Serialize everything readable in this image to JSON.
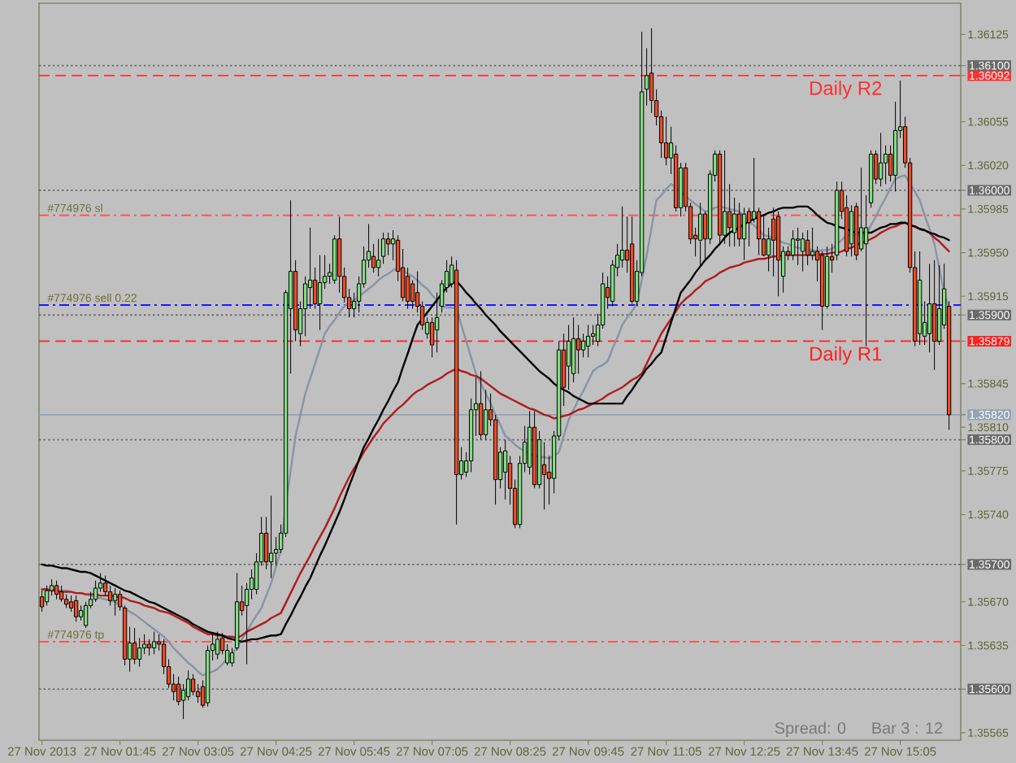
{
  "chart_data": {
    "type": "candlestick",
    "categories": [
      "27 Nov 2013",
      null,
      null,
      null,
      null,
      null,
      null,
      null,
      null,
      null,
      null,
      null,
      null,
      null,
      null,
      null,
      "27 Nov 01:45",
      null,
      null,
      null,
      null,
      null,
      null,
      null,
      null,
      null,
      null,
      null,
      null,
      null,
      null,
      null,
      "27 Nov 03:05",
      null,
      null,
      null,
      null,
      null,
      null,
      null,
      null,
      null,
      null,
      null,
      null,
      null,
      null,
      null,
      "27 Nov 04:25",
      null,
      null,
      null,
      null,
      null,
      null,
      null,
      null,
      null,
      null,
      null,
      null,
      null,
      null,
      null,
      "27 Nov 05:45",
      null,
      null,
      null,
      null,
      null,
      null,
      null,
      null,
      null,
      null,
      null,
      null,
      null,
      null,
      null,
      "27 Nov 07:05",
      null,
      null,
      null,
      null,
      null,
      null,
      null,
      null,
      null,
      null,
      null,
      null,
      null,
      null,
      null,
      "27 Nov 08:25",
      null,
      null,
      null,
      null,
      null,
      null,
      null,
      null,
      null,
      null,
      null,
      null,
      null,
      null,
      null,
      "27 Nov 09:45",
      null,
      null,
      null,
      null,
      null,
      null,
      null,
      null,
      null,
      null,
      null,
      null,
      null,
      null,
      null,
      "27 Nov 11:05",
      null,
      null,
      null,
      null,
      null,
      null,
      null,
      null,
      null,
      null,
      null,
      null,
      null,
      null,
      null,
      "27 Nov 12:25",
      null,
      null,
      null,
      null,
      null,
      null,
      null,
      null,
      null,
      null,
      null,
      null,
      null,
      null,
      null,
      "27 Nov 13:45",
      null,
      null,
      null,
      null,
      null,
      null,
      null,
      null,
      null,
      null,
      null,
      null,
      null,
      null,
      null,
      "27 Nov 15:05",
      null,
      null,
      null,
      null,
      null,
      null,
      null,
      null,
      null,
      null
    ],
    "ohlc": [
      [
        1.35674,
        1.35679,
        1.35662,
        1.35666
      ],
      [
        1.3567,
        1.35683,
        1.35667,
        1.35679
      ],
      [
        1.35679,
        1.35688,
        1.35675,
        1.35683
      ],
      [
        1.35683,
        1.35687,
        1.35672,
        1.35676
      ],
      [
        1.35678,
        1.35683,
        1.3567,
        1.35672
      ],
      [
        1.35672,
        1.35676,
        1.35665,
        1.35668
      ],
      [
        1.3567,
        1.35675,
        1.35662,
        1.35665
      ],
      [
        1.35671,
        1.35675,
        1.35654,
        1.35658
      ],
      [
        1.35658,
        1.35667,
        1.35655,
        1.35663
      ],
      [
        1.35651,
        1.3567,
        1.35649,
        1.35667
      ],
      [
        1.35667,
        1.35678,
        1.35665,
        1.35672
      ],
      [
        1.35672,
        1.35687,
        1.3567,
        1.35681
      ],
      [
        1.35681,
        1.35693,
        1.35678,
        1.35685
      ],
      [
        1.35685,
        1.35691,
        1.35675,
        1.35678
      ],
      [
        1.35678,
        1.35683,
        1.35667,
        1.35671
      ],
      [
        1.35671,
        1.35681,
        1.35659,
        1.35676
      ],
      [
        1.35676,
        1.35679,
        1.35663,
        1.35666
      ],
      [
        1.35665,
        1.35667,
        1.35619,
        1.35624
      ],
      [
        1.35624,
        1.3565,
        1.35614,
        1.35637
      ],
      [
        1.35637,
        1.35649,
        1.3562,
        1.35624
      ],
      [
        1.35624,
        1.35641,
        1.35618,
        1.35633
      ],
      [
        1.35633,
        1.35644,
        1.35628,
        1.35636
      ],
      [
        1.35636,
        1.3564,
        1.35627,
        1.35633
      ],
      [
        1.35633,
        1.35646,
        1.35628,
        1.35638
      ],
      [
        1.35638,
        1.35644,
        1.35631,
        1.35636
      ],
      [
        1.35636,
        1.3564,
        1.35612,
        1.35618
      ],
      [
        1.35618,
        1.35624,
        1.35601,
        1.35604
      ],
      [
        1.35604,
        1.35612,
        1.35591,
        1.35598
      ],
      [
        1.35604,
        1.3561,
        1.35587,
        1.3559
      ],
      [
        1.35591,
        1.35604,
        1.35576,
        1.35599
      ],
      [
        1.35594,
        1.35615,
        1.35591,
        1.35608
      ],
      [
        1.35608,
        1.35612,
        1.35595,
        1.35598
      ],
      [
        1.35598,
        1.35604,
        1.35589,
        1.35594
      ],
      [
        1.35602,
        1.35607,
        1.35585,
        1.35587
      ],
      [
        1.35589,
        1.35635,
        1.35586,
        1.35631
      ],
      [
        1.35631,
        1.35644,
        1.35623,
        1.35636
      ],
      [
        1.35628,
        1.35646,
        1.35624,
        1.3564
      ],
      [
        1.35641,
        1.35645,
        1.35628,
        1.35631
      ],
      [
        1.35621,
        1.35636,
        1.35619,
        1.35631
      ],
      [
        1.35621,
        1.35633,
        1.35618,
        1.35629
      ],
      [
        1.35633,
        1.35693,
        1.35631,
        1.3567
      ],
      [
        1.3567,
        1.35683,
        1.35659,
        1.35663
      ],
      [
        1.35667,
        1.35685,
        1.3562,
        1.3568
      ],
      [
        1.3568,
        1.35696,
        1.35672,
        1.35689
      ],
      [
        1.3568,
        1.35709,
        1.35676,
        1.35702
      ],
      [
        1.35702,
        1.35738,
        1.35699,
        1.35725
      ],
      [
        1.35725,
        1.35738,
        1.35696,
        1.35702
      ],
      [
        1.35702,
        1.35755,
        1.35689,
        1.35709
      ],
      [
        1.35709,
        1.35722,
        1.35699,
        1.35712
      ],
      [
        1.35712,
        1.35732,
        1.35709,
        1.35725
      ],
      [
        1.35725,
        1.3592,
        1.35722,
        1.35918
      ],
      [
        1.35905,
        1.35992,
        1.35853,
        1.35935
      ],
      [
        1.35935,
        1.35944,
        1.35879,
        1.35888
      ],
      [
        1.35885,
        1.35911,
        1.35875,
        1.35905
      ],
      [
        1.35905,
        1.35931,
        1.35883,
        1.35925
      ],
      [
        1.35922,
        1.3597,
        1.35905,
        1.35928
      ],
      [
        1.35928,
        1.35938,
        1.35905,
        1.35909
      ],
      [
        1.35909,
        1.35948,
        1.35888,
        1.35926
      ],
      [
        1.35926,
        1.35948,
        1.35921,
        1.35931
      ],
      [
        1.35931,
        1.35941,
        1.35925,
        1.35934
      ],
      [
        1.35928,
        1.35964,
        1.35925,
        1.35961
      ],
      [
        1.35961,
        1.35979,
        1.35918,
        1.35931
      ],
      [
        1.35931,
        1.35938,
        1.3591,
        1.35914
      ],
      [
        1.35914,
        1.35921,
        1.35898,
        1.35905
      ],
      [
        1.35905,
        1.35918,
        1.35898,
        1.35911
      ],
      [
        1.35911,
        1.35931,
        1.35902,
        1.35925
      ],
      [
        1.35925,
        1.35955,
        1.35922,
        1.35944
      ],
      [
        1.35944,
        1.35973,
        1.35938,
        1.35951
      ],
      [
        1.35947,
        1.35957,
        1.35934,
        1.35938
      ],
      [
        1.35938,
        1.35961,
        1.35931,
        1.35944
      ],
      [
        1.35947,
        1.35966,
        1.35941,
        1.35961
      ],
      [
        1.35961,
        1.35966,
        1.35948,
        1.35957
      ],
      [
        1.35957,
        1.35968,
        1.35944,
        1.35961
      ],
      [
        1.3596,
        1.35964,
        1.35927,
        1.35935
      ],
      [
        1.35938,
        1.35953,
        1.35911,
        1.35914
      ],
      [
        1.35931,
        1.35938,
        1.35905,
        1.35911
      ],
      [
        1.35925,
        1.35928,
        1.35905,
        1.35911
      ],
      [
        1.35918,
        1.35935,
        1.35902,
        1.35907
      ],
      [
        1.35907,
        1.35911,
        1.35888,
        1.35892
      ],
      [
        1.35885,
        1.35898,
        1.35881,
        1.35894
      ],
      [
        1.35894,
        1.35898,
        1.35866,
        1.35876
      ],
      [
        1.35888,
        1.35918,
        1.3587,
        1.35898
      ],
      [
        1.35907,
        1.35928,
        1.35902,
        1.35925
      ],
      [
        1.35922,
        1.35944,
        1.35918,
        1.35935
      ],
      [
        1.35925,
        1.35947,
        1.35922,
        1.3594
      ],
      [
        1.35936,
        1.35944,
        1.35732,
        1.35772
      ],
      [
        1.35772,
        1.35794,
        1.35768,
        1.35783
      ],
      [
        1.35774,
        1.3579,
        1.3577,
        1.35783
      ],
      [
        1.35783,
        1.35833,
        1.35774,
        1.35824
      ],
      [
        1.35824,
        1.3585,
        1.35803,
        1.35829
      ],
      [
        1.35829,
        1.35855,
        1.358,
        1.35804
      ],
      [
        1.35804,
        1.3584,
        1.358,
        1.35824
      ],
      [
        1.35824,
        1.35837,
        1.35811,
        1.35816
      ],
      [
        1.35816,
        1.3582,
        1.35748,
        1.35768
      ],
      [
        1.35768,
        1.35794,
        1.35761,
        1.3579
      ],
      [
        1.35774,
        1.358,
        1.35752,
        1.35791
      ],
      [
        1.35781,
        1.35787,
        1.35748,
        1.35761
      ],
      [
        1.35761,
        1.35768,
        1.35729,
        1.35732
      ],
      [
        1.35732,
        1.35787,
        1.35729,
        1.35781
      ],
      [
        1.35781,
        1.35811,
        1.35774,
        1.35798
      ],
      [
        1.35778,
        1.35823,
        1.35772,
        1.3581
      ],
      [
        1.3581,
        1.35823,
        1.35761,
        1.35764
      ],
      [
        1.35764,
        1.35807,
        1.35761,
        1.358
      ],
      [
        1.3578,
        1.35798,
        1.35744,
        1.35772
      ],
      [
        1.35774,
        1.35787,
        1.35748,
        1.35769
      ],
      [
        1.35769,
        1.35807,
        1.35757,
        1.35803
      ],
      [
        1.35803,
        1.35879,
        1.358,
        1.35872
      ],
      [
        1.35872,
        1.35885,
        1.35827,
        1.35842
      ],
      [
        1.35859,
        1.35892,
        1.3584,
        1.35879
      ],
      [
        1.35853,
        1.35898,
        1.35846,
        1.35881
      ],
      [
        1.35881,
        1.35892,
        1.35853,
        1.35872
      ],
      [
        1.35872,
        1.35885,
        1.35866,
        1.35879
      ],
      [
        1.35875,
        1.35892,
        1.35866,
        1.35883
      ],
      [
        1.35883,
        1.35892,
        1.35876,
        1.35885
      ],
      [
        1.35879,
        1.35901,
        1.35875,
        1.35892
      ],
      [
        1.35892,
        1.35934,
        1.35889,
        1.35925
      ],
      [
        1.35922,
        1.35931,
        1.35905,
        1.35914
      ],
      [
        1.35911,
        1.35944,
        1.35907,
        1.3594
      ],
      [
        1.35938,
        1.35957,
        1.35931,
        1.35948
      ],
      [
        1.35944,
        1.35987,
        1.35938,
        1.35952
      ],
      [
        1.35952,
        1.35979,
        1.35934,
        1.35944
      ],
      [
        1.35957,
        1.35979,
        1.35909,
        1.35911
      ],
      [
        1.35911,
        1.35944,
        1.35907,
        1.35935
      ],
      [
        1.35934,
        1.36127,
        1.35931,
        1.36079
      ],
      [
        1.36081,
        1.36114,
        1.36068,
        1.36092
      ],
      [
        1.36094,
        1.3613,
        1.36062,
        1.36072
      ],
      [
        1.36072,
        1.36081,
        1.36052,
        1.36059
      ],
      [
        1.36059,
        1.36064,
        1.36026,
        1.36038
      ],
      [
        1.36038,
        1.36059,
        1.3602,
        1.36026
      ],
      [
        1.36026,
        1.36051,
        1.36013,
        1.36038
      ],
      [
        1.36029,
        1.36036,
        1.35983,
        1.35986
      ],
      [
        1.35986,
        1.36022,
        1.35979,
        1.36018
      ],
      [
        1.36018,
        1.36022,
        1.35983,
        1.35987
      ],
      [
        1.35987,
        1.3599,
        1.35957,
        1.35961
      ],
      [
        1.35964,
        1.3597,
        1.35947,
        1.35961
      ],
      [
        1.3596,
        1.3599,
        1.3594,
        1.35981
      ],
      [
        1.35981,
        1.35983,
        1.35944,
        1.35961
      ],
      [
        1.35961,
        1.36016,
        1.35957,
        1.36013
      ],
      [
        1.36012,
        1.36032,
        1.36007,
        1.36029
      ],
      [
        1.36029,
        1.36032,
        1.35957,
        1.35964
      ],
      [
        1.35964,
        1.36032,
        1.35957,
        1.35983
      ],
      [
        1.35983,
        1.36005,
        1.35955,
        1.3597
      ],
      [
        1.35966,
        1.35994,
        1.35955,
        1.35981
      ],
      [
        1.35981,
        1.3599,
        1.35955,
        1.35961
      ],
      [
        1.35961,
        1.35986,
        1.35944,
        1.35981
      ],
      [
        1.35983,
        1.35986,
        1.35955,
        1.35974
      ],
      [
        1.35977,
        1.36026,
        1.35974,
        1.35983
      ],
      [
        1.35983,
        1.35986,
        1.35948,
        1.35961
      ],
      [
        1.35961,
        1.35981,
        1.35947,
        1.35948
      ],
      [
        1.35948,
        1.3597,
        1.35935,
        1.35961
      ],
      [
        1.35977,
        1.35986,
        1.35931,
        1.3596
      ],
      [
        1.35979,
        1.35983,
        1.35915,
        1.35944
      ],
      [
        1.35931,
        1.35955,
        1.35918,
        1.35951
      ],
      [
        1.35951,
        1.35955,
        1.35944,
        1.35948
      ],
      [
        1.35948,
        1.35968,
        1.35944,
        1.35961
      ],
      [
        1.3596,
        1.3597,
        1.3594,
        1.35961
      ],
      [
        1.35951,
        1.35966,
        1.35935,
        1.35961
      ],
      [
        1.3596,
        1.35968,
        1.3594,
        1.35948
      ],
      [
        1.35948,
        1.3597,
        1.35944,
        1.35951
      ],
      [
        1.35951,
        1.35955,
        1.35927,
        1.35944
      ],
      [
        1.35948,
        1.35951,
        1.35888,
        1.35907
      ],
      [
        1.35907,
        1.35955,
        1.35905,
        1.35947
      ],
      [
        1.35947,
        1.35957,
        1.35934,
        1.35944
      ],
      [
        1.35948,
        1.36007,
        1.35944,
        1.36
      ],
      [
        1.36,
        1.36007,
        1.35977,
        1.35983
      ],
      [
        1.35986,
        1.35996,
        1.35947,
        1.35951
      ],
      [
        1.35957,
        1.35988,
        1.35947,
        1.35983
      ],
      [
        1.35987,
        1.3599,
        1.35944,
        1.35948
      ],
      [
        1.35953,
        1.36018,
        1.35951,
        1.3597
      ],
      [
        1.35957,
        1.35996,
        1.35875,
        1.3597
      ],
      [
        1.3599,
        1.36032,
        1.35986,
        1.36029
      ],
      [
        1.36029,
        1.36032,
        1.36005,
        1.36009
      ],
      [
        1.36009,
        1.36046,
        1.36003,
        1.36022
      ],
      [
        1.36022,
        1.36036,
        1.36005,
        1.36029
      ],
      [
        1.36029,
        1.36036,
        1.36007,
        1.36012
      ],
      [
        1.36012,
        1.36071,
        1.35999,
        1.36048
      ],
      [
        1.36048,
        1.36088,
        1.36042,
        1.36051
      ],
      [
        1.36051,
        1.36059,
        1.36018,
        1.36022
      ],
      [
        1.36022,
        1.36026,
        1.35934,
        1.35938
      ],
      [
        1.35938,
        1.35951,
        1.35875,
        1.35879
      ],
      [
        1.35885,
        1.35951,
        1.35876,
        1.35928
      ],
      [
        1.35883,
        1.35911,
        1.35876,
        1.35894
      ],
      [
        1.35885,
        1.35941,
        1.3587,
        1.35909
      ],
      [
        1.35909,
        1.35944,
        1.35856,
        1.35879
      ],
      [
        1.35879,
        1.3594,
        1.35876,
        1.35905
      ],
      [
        1.35892,
        1.35941,
        1.35889,
        1.35921
      ],
      [
        1.35907,
        1.35911,
        1.35808,
        1.3582
      ]
    ],
    "colors": [
      "#f04a24",
      "#7fdf7f",
      "#7fdf7f",
      "#f04a24",
      "#f04a24",
      "#f04a24",
      "#f04a24",
      "#f04a24",
      "#7fdf7f",
      "#7fdf7f",
      "#7fdf7f",
      "#7fdf7f",
      "#7fdf7f",
      "#f04a24",
      "#f04a24",
      "#7fdf7f",
      "#f04a24",
      "#f04a24",
      "#7fdf7f",
      "#f04a24",
      "#7fdf7f",
      "#7fdf7f",
      "#f04a24",
      "#7fdf7f",
      "#f04a24",
      "#f04a24",
      "#f04a24",
      "#f04a24",
      "#f04a24",
      "#7fdf7f",
      "#7fdf7f",
      "#f04a24",
      "#f04a24",
      "#f04a24",
      "#7fdf7f",
      "#7fdf7f",
      "#7fdf7f",
      "#f04a24",
      "#7fdf7f",
      "#7fdf7f",
      "#7fdf7f",
      "#f04a24",
      "#7fdf7f",
      "#7fdf7f",
      "#7fdf7f",
      "#7fdf7f",
      "#f04a24",
      "#7fdf7f",
      "#7fdf7f",
      "#7fdf7f",
      "#7fdf7f",
      "#7fdf7f",
      "#f04a24",
      "#7fdf7f",
      "#7fdf7f",
      "#7fdf7f",
      "#f04a24",
      "#7fdf7f",
      "#7fdf7f",
      "#7fdf7f",
      "#7fdf7f",
      "#f04a24",
      "#f04a24",
      "#f04a24",
      "#7fdf7f",
      "#7fdf7f",
      "#7fdf7f",
      "#7fdf7f",
      "#f04a24",
      "#7fdf7f",
      "#7fdf7f",
      "#f04a24",
      "#7fdf7f",
      "#f04a24",
      "#f04a24",
      "#f04a24",
      "#f04a24",
      "#f04a24",
      "#f04a24",
      "#7fdf7f",
      "#f04a24",
      "#7fdf7f",
      "#7fdf7f",
      "#7fdf7f",
      "#7fdf7f",
      "#f04a24",
      "#7fdf7f",
      "#7fdf7f",
      "#7fdf7f",
      "#7fdf7f",
      "#f04a24",
      "#7fdf7f",
      "#f04a24",
      "#f04a24",
      "#7fdf7f",
      "#7fdf7f",
      "#f04a24",
      "#f04a24",
      "#7fdf7f",
      "#7fdf7f",
      "#7fdf7f",
      "#f04a24",
      "#7fdf7f",
      "#f04a24",
      "#f04a24",
      "#7fdf7f",
      "#7fdf7f",
      "#f04a24",
      "#7fdf7f",
      "#7fdf7f",
      "#f04a24",
      "#7fdf7f",
      "#7fdf7f",
      "#7fdf7f",
      "#7fdf7f",
      "#7fdf7f",
      "#f04a24",
      "#7fdf7f",
      "#7fdf7f",
      "#7fdf7f",
      "#f04a24",
      "#f04a24",
      "#7fdf7f",
      "#7fdf7f",
      "#7fdf7f",
      "#f04a24",
      "#f04a24",
      "#f04a24",
      "#f04a24",
      "#7fdf7f",
      "#f04a24",
      "#7fdf7f",
      "#f04a24",
      "#f04a24",
      "#f04a24",
      "#7fdf7f",
      "#f04a24",
      "#7fdf7f",
      "#7fdf7f",
      "#f04a24",
      "#7fdf7f",
      "#f04a24",
      "#7fdf7f",
      "#f04a24",
      "#7fdf7f",
      "#f04a24",
      "#7fdf7f",
      "#f04a24",
      "#f04a24",
      "#7fdf7f",
      "#f04a24",
      "#f04a24",
      "#7fdf7f",
      "#f04a24",
      "#7fdf7f",
      "#7fdf7f",
      "#7fdf7f",
      "#f04a24",
      "#7fdf7f",
      "#f04a24",
      "#f04a24",
      "#7fdf7f",
      "#f04a24",
      "#7fdf7f",
      "#f04a24",
      "#f04a24",
      "#7fdf7f",
      "#f04a24",
      "#7fdf7f",
      "#7fdf7f",
      "#7fdf7f",
      "#f04a24",
      "#7fdf7f",
      "#7fdf7f",
      "#f04a24",
      "#7fdf7f",
      "#7fdf7f",
      "#f04a24",
      "#f04a24",
      "#f04a24",
      "#7fdf7f",
      "#7fdf7f",
      "#7fdf7f",
      "#f04a24",
      "#7fdf7f",
      "#7fdf7f",
      "#f04a24"
    ],
    "series": [
      {
        "type": "line",
        "color": "#8794a6",
        "values": [
          1.3568,
          1.3568,
          1.3568,
          1.35679,
          1.35679,
          1.35679,
          1.35678,
          1.35677,
          1.35677,
          1.35676,
          1.35675,
          1.35674,
          1.35673,
          1.35672,
          1.35671,
          1.3567,
          1.35667,
          1.35665,
          1.35662,
          1.3566,
          1.35657,
          1.35654,
          1.35651,
          1.35648,
          1.35645,
          1.35642,
          1.35638,
          1.35633,
          1.35629,
          1.35625,
          1.35621,
          1.35618,
          1.35614,
          1.35611,
          1.35613,
          1.35614,
          1.35616,
          1.3562,
          1.35625,
          1.35629,
          1.35633,
          1.3564,
          1.35646,
          1.35653,
          1.35659,
          1.35665,
          1.35675,
          1.35685,
          1.35698,
          1.35712,
          1.35748,
          1.35775,
          1.35803,
          1.3582,
          1.35837,
          1.35849,
          1.35861,
          1.35873,
          1.35885,
          1.35891,
          1.35896,
          1.35902,
          1.35907,
          1.3591,
          1.35912,
          1.35915,
          1.35918,
          1.35921,
          1.35924,
          1.35928,
          1.35931,
          1.35933,
          1.35936,
          1.35938,
          1.35936,
          1.35933,
          1.35931,
          1.35928,
          1.35924,
          1.35921,
          1.35916,
          1.35912,
          1.35907,
          1.35906,
          1.35906,
          1.35905,
          1.35892,
          1.35879,
          1.35866,
          1.35853,
          1.35845,
          1.35837,
          1.35829,
          1.3582,
          1.35812,
          1.35803,
          1.358,
          1.35796,
          1.35793,
          1.35791,
          1.35789,
          1.35787,
          1.35786,
          1.35786,
          1.35785,
          1.35787,
          1.3579,
          1.35803,
          1.35816,
          1.35824,
          1.35832,
          1.35839,
          1.35847,
          1.35855,
          1.35858,
          1.3586,
          1.35863,
          1.35873,
          1.35882,
          1.35892,
          1.35898,
          1.35903,
          1.35909,
          1.35928,
          1.35948,
          1.3597,
          1.35992,
          1.35996,
          1.36001,
          1.36005,
          1.36002,
          1.35999,
          1.35995,
          1.35992,
          1.35989,
          1.35986,
          1.35983,
          1.35984,
          1.35986,
          1.35987,
          1.35986,
          1.35985,
          1.35984,
          1.35983,
          1.35979,
          1.35975,
          1.35972,
          1.35968,
          1.35964,
          1.35963,
          1.35961,
          1.3596,
          1.35958,
          1.35957,
          1.35955,
          1.35954,
          1.35953,
          1.35953,
          1.35952,
          1.35951,
          1.35952,
          1.35952,
          1.35953,
          1.35957,
          1.3596,
          1.35964,
          1.35964,
          1.35964,
          1.35964,
          1.35964,
          1.35972,
          1.35979,
          1.35987,
          1.35994,
          1.36002,
          1.36009,
          1.36011,
          1.36012,
          1.36005,
          1.35999,
          1.35992,
          1.3598,
          1.35969,
          1.35957,
          1.35938,
          1.35918,
          1.35905
        ]
      },
      {
        "type": "line",
        "color": "#b01c1c",
        "values": [
          1.3568,
          1.3568,
          1.35679,
          1.35679,
          1.35678,
          1.35678,
          1.35678,
          1.35677,
          1.35677,
          1.35676,
          1.35676,
          1.35676,
          1.35675,
          1.35675,
          1.35675,
          1.35674,
          1.35674,
          1.35673,
          1.35671,
          1.3567,
          1.35669,
          1.35667,
          1.35666,
          1.35665,
          1.35663,
          1.35662,
          1.35661,
          1.35659,
          1.35657,
          1.35655,
          1.35653,
          1.3565,
          1.35648,
          1.35646,
          1.35644,
          1.35644,
          1.35643,
          1.35643,
          1.35642,
          1.35642,
          1.35641,
          1.35643,
          1.35646,
          1.35648,
          1.3565,
          1.35652,
          1.35654,
          1.35657,
          1.35659,
          1.35661,
          1.35669,
          1.35677,
          1.35685,
          1.35693,
          1.357,
          1.35707,
          1.35715,
          1.35722,
          1.35729,
          1.35737,
          1.35745,
          1.35754,
          1.35762,
          1.3577,
          1.35777,
          1.35783,
          1.3579,
          1.35796,
          1.35802,
          1.35807,
          1.35813,
          1.35817,
          1.35821,
          1.35825,
          1.35828,
          1.35832,
          1.35836,
          1.35839,
          1.35841,
          1.35844,
          1.35846,
          1.35848,
          1.3585,
          1.35853,
          1.35855,
          1.35857,
          1.35855,
          1.35854,
          1.35852,
          1.35851,
          1.35849,
          1.35846,
          1.35843,
          1.3584,
          1.35837,
          1.35835,
          1.35833,
          1.35831,
          1.35829,
          1.35827,
          1.35825,
          1.35824,
          1.35822,
          1.3582,
          1.35819,
          1.35817,
          1.35818,
          1.35819,
          1.3582,
          1.35822,
          1.35824,
          1.35825,
          1.35827,
          1.35829,
          1.35831,
          1.35833,
          1.35836,
          1.35838,
          1.3584,
          1.35842,
          1.35845,
          1.35848,
          1.3585,
          1.35853,
          1.35861,
          1.35869,
          1.35877,
          1.35885,
          1.35891,
          1.35897,
          1.35903,
          1.35909,
          1.35913,
          1.35916,
          1.3592,
          1.35923,
          1.35927,
          1.35929,
          1.35931,
          1.35934,
          1.35936,
          1.35938,
          1.35939,
          1.3594,
          1.35942,
          1.35943,
          1.35944,
          1.35945,
          1.35945,
          1.35946,
          1.35947,
          1.35947,
          1.35948,
          1.35948,
          1.35948,
          1.35948,
          1.35948,
          1.35948,
          1.35948,
          1.35948,
          1.35949,
          1.35949,
          1.3595,
          1.3595,
          1.35951,
          1.35953,
          1.35954,
          1.35956,
          1.35958,
          1.35959,
          1.35961,
          1.35963,
          1.35966,
          1.35968,
          1.3597,
          1.35971,
          1.35973,
          1.35974,
          1.35972,
          1.35971,
          1.35969,
          1.35968,
          1.35966,
          1.35962,
          1.35959,
          1.35955,
          1.35951
        ]
      },
      {
        "type": "line",
        "color": "#000000",
        "values": [
          1.357,
          1.35699,
          1.35699,
          1.35698,
          1.35697,
          1.35697,
          1.35696,
          1.35695,
          1.35694,
          1.35694,
          1.35693,
          1.35691,
          1.35689,
          1.35687,
          1.35685,
          1.35683,
          1.35681,
          1.35679,
          1.35678,
          1.35676,
          1.35674,
          1.35672,
          1.3567,
          1.35669,
          1.35667,
          1.35665,
          1.35663,
          1.35661,
          1.35659,
          1.35657,
          1.35655,
          1.35652,
          1.3565,
          1.35648,
          1.35646,
          1.35645,
          1.35644,
          1.35643,
          1.35641,
          1.3564,
          1.35639,
          1.35638,
          1.35639,
          1.3564,
          1.3564,
          1.35641,
          1.35642,
          1.35643,
          1.35643,
          1.35644,
          1.35652,
          1.35659,
          1.35667,
          1.35674,
          1.35682,
          1.35689,
          1.35698,
          1.35707,
          1.35715,
          1.35724,
          1.35733,
          1.35742,
          1.35752,
          1.35763,
          1.35773,
          1.35784,
          1.35794,
          1.35801,
          1.35809,
          1.35816,
          1.35824,
          1.35831,
          1.35839,
          1.35846,
          1.35858,
          1.35869,
          1.35881,
          1.35892,
          1.35897,
          1.35902,
          1.35907,
          1.35912,
          1.35917,
          1.35922,
          1.35925,
          1.35927,
          1.35923,
          1.35918,
          1.35914,
          1.35909,
          1.35905,
          1.359,
          1.35896,
          1.35892,
          1.35887,
          1.35883,
          1.35879,
          1.35875,
          1.35871,
          1.35867,
          1.35863,
          1.35859,
          1.35855,
          1.35852,
          1.35849,
          1.35845,
          1.35842,
          1.3584,
          1.35838,
          1.35835,
          1.35833,
          1.35831,
          1.35829,
          1.35829,
          1.35829,
          1.35829,
          1.35829,
          1.35829,
          1.35829,
          1.35829,
          1.35835,
          1.3584,
          1.35846,
          1.35851,
          1.35857,
          1.35861,
          1.35866,
          1.3587,
          1.35882,
          1.35894,
          1.35906,
          1.35918,
          1.35923,
          1.35928,
          1.35934,
          1.35939,
          1.35944,
          1.35948,
          1.35953,
          1.35957,
          1.35962,
          1.35966,
          1.35968,
          1.3597,
          1.35973,
          1.35975,
          1.35977,
          1.35979,
          1.3598,
          1.35982,
          1.35983,
          1.35985,
          1.35986,
          1.35986,
          1.35986,
          1.35987,
          1.35987,
          1.35987,
          1.35984,
          1.3598,
          1.35977,
          1.35974,
          1.35973,
          1.35971,
          1.3597,
          1.35969,
          1.35967,
          1.35966,
          1.35966,
          1.35966,
          1.35966,
          1.35968,
          1.3597,
          1.35971,
          1.35973,
          1.35973,
          1.35974,
          1.35974,
          1.35972,
          1.35971,
          1.35969,
          1.35968,
          1.35966,
          1.35965,
          1.35963,
          1.35962,
          1.3596
        ]
      }
    ],
    "ylim": [
      1.35559,
      1.3615
    ],
    "yticks": [
      1.35565,
      {
        "value": 1.356,
        "label": "1.35600"
      },
      1.35635,
      {
        "value": 1.3567,
        "label": "1.35670"
      },
      {
        "value": 1.357,
        "label": "1.35700"
      },
      {
        "value": 1.3574,
        "label": "1.35740"
      },
      1.35775,
      {
        "value": 1.358,
        "label": "1.35800"
      },
      {
        "value": 1.3581,
        "label": "1.35810"
      },
      {
        "value": 1.3582,
        "label": "1.35820"
      },
      1.35845,
      1.35879,
      {
        "value": 1.359,
        "label": "1.35900"
      },
      1.35915,
      {
        "value": 1.3595,
        "label": "1.35950"
      },
      1.35985,
      {
        "value": 1.36,
        "label": "1.36000"
      },
      {
        "value": 1.3602,
        "label": "1.36020"
      },
      1.36055,
      1.36092,
      {
        "value": 1.361,
        "label": "1.36100"
      },
      1.36125
    ],
    "ref_lines": [
      {
        "axis": "y",
        "value": 1.361,
        "color": "#6a6a6a",
        "line_style": "dotted"
      },
      {
        "axis": "y",
        "value": 1.36092,
        "label": "Daily R2",
        "color": "#ff3030",
        "line_style": "dashed"
      },
      {
        "axis": "y",
        "value": 1.36,
        "color": "#6a6a6a",
        "line_style": "dotted"
      },
      {
        "axis": "y",
        "value": 1.3598,
        "label": "#774976 sl",
        "color": "#ff4a4a",
        "line_style": "dashdot"
      },
      {
        "axis": "y",
        "value": 1.35908,
        "label": "#774976 sell 0.22",
        "color": "#1a1aff",
        "line_style": "dashdot"
      },
      {
        "axis": "y",
        "value": 1.359,
        "color": "#6a6a6a",
        "line_style": "dotted"
      },
      {
        "axis": "y",
        "value": 1.35879,
        "label": "Daily R1",
        "color": "#ff2020",
        "line_style": "dashed"
      },
      {
        "axis": "y",
        "value": 1.3582,
        "color": "#95a3b3",
        "line_style": "solid"
      },
      {
        "axis": "y",
        "value": 1.358,
        "color": "#6a6a6a",
        "line_style": "dotted"
      },
      {
        "axis": "y",
        "value": 1.357,
        "color": "#6a6a6a",
        "line_style": "dotted"
      },
      {
        "axis": "y",
        "value": 1.35638,
        "label": "#774976 tp",
        "color": "#ff4a4a",
        "line_style": "dashdot"
      },
      {
        "axis": "y",
        "value": 1.356,
        "color": "#6a6a6a",
        "line_style": "dotted"
      }
    ],
    "annotations": [
      "Spread: 0",
      "Bar 3 : 12"
    ]
  }
}
